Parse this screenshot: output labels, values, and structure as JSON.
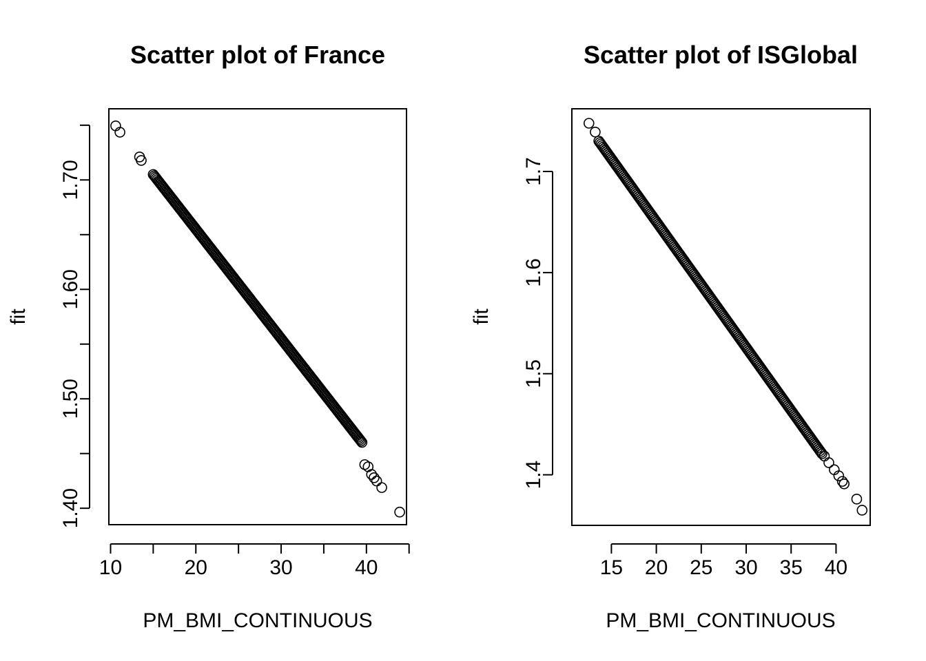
{
  "chart_data": [
    {
      "type": "scatter",
      "title": "Scatter plot of France",
      "xlabel": "PM_BMI_CONTINUOUS",
      "ylabel": "fit",
      "xlim": [
        9.8,
        44.7
      ],
      "ylim": [
        1.385,
        1.765
      ],
      "xticks": [
        10,
        15,
        20,
        25,
        30,
        35,
        40,
        45
      ],
      "xtick_labels": [
        "10",
        "",
        "20",
        "",
        "30",
        "",
        "40",
        ""
      ],
      "yticks": [
        1.4,
        1.45,
        1.5,
        1.55,
        1.6,
        1.65,
        1.7,
        1.75
      ],
      "ytick_labels": [
        "1.40",
        "",
        "1.50",
        "",
        "1.60",
        "",
        "1.70",
        ""
      ],
      "grid": false,
      "marker": "open-circle",
      "line_fit": {
        "slope": -0.01,
        "intercept": 1.855
      },
      "isolated_points": [
        [
          10.6,
          1.7494
        ],
        [
          11.1,
          1.7436
        ],
        [
          13.4,
          1.721
        ],
        [
          13.6,
          1.7178
        ],
        [
          43.9,
          1.3965
        ],
        [
          41.8,
          1.4189
        ],
        [
          41.2,
          1.4249
        ],
        [
          40.9,
          1.4279
        ],
        [
          40.6,
          1.4309
        ],
        [
          40.2,
          1.4379
        ],
        [
          39.8,
          1.4399
        ]
      ],
      "dense_range": [
        15.0,
        39.5
      ],
      "dense_step": 0.12
    },
    {
      "type": "scatter",
      "title": "Scatter plot of ISGlobal",
      "xlabel": "PM_BMI_CONTINUOUS",
      "ylabel": "fit",
      "xlim": [
        10.6,
        43.8
      ],
      "ylim": [
        1.35,
        1.762
      ],
      "xticks": [
        15,
        20,
        25,
        30,
        35,
        40
      ],
      "xtick_labels": [
        "15",
        "20",
        "25",
        "30",
        "35",
        "40"
      ],
      "yticks": [
        1.4,
        1.5,
        1.6,
        1.7
      ],
      "ytick_labels": [
        "1.4",
        "1.5",
        "1.6",
        "1.7"
      ],
      "grid": false,
      "marker": "open-circle",
      "line_fit": {
        "slope": -0.01245,
        "intercept": 1.8994
      },
      "isolated_points": [
        [
          12.5,
          1.7477
        ],
        [
          13.2,
          1.739
        ],
        [
          42.9,
          1.365
        ],
        [
          42.3,
          1.376
        ],
        [
          40.9,
          1.391
        ],
        [
          40.7,
          1.3935
        ],
        [
          40.3,
          1.399
        ],
        [
          39.8,
          1.405
        ],
        [
          39.2,
          1.412
        ],
        [
          38.7,
          1.4185
        ]
      ],
      "dense_range": [
        13.6,
        38.5
      ],
      "dense_step": 0.12
    }
  ]
}
